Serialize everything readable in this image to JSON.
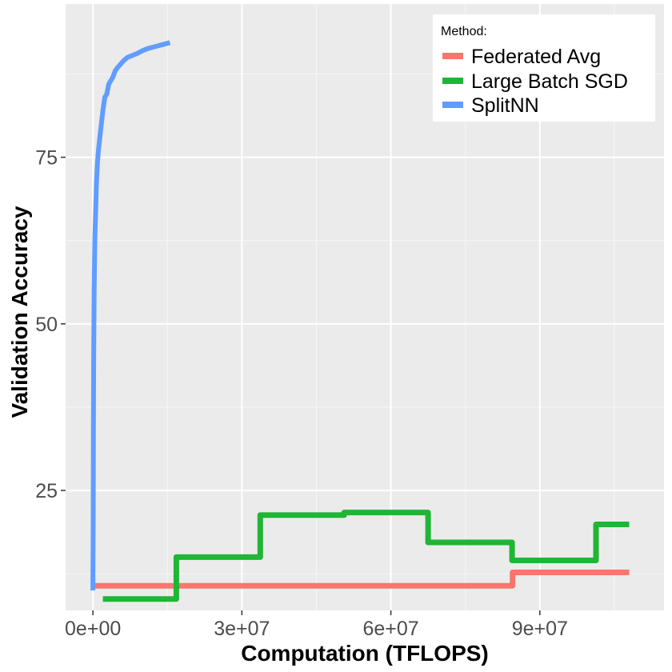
{
  "chart_data": {
    "type": "line",
    "xlabel": "Computation (TFLOPS)",
    "ylabel": "Validation Accuracy",
    "xlim": [
      -5500000,
      115000000
    ],
    "ylim": [
      7,
      98
    ],
    "x_ticks": [
      0,
      30000000,
      60000000,
      90000000
    ],
    "x_tick_labels": [
      "0e+00",
      "3e+07",
      "6e+07",
      "9e+07"
    ],
    "y_ticks": [
      25,
      50,
      75
    ],
    "y_tick_labels": [
      "25",
      "50",
      "75"
    ],
    "grid": true,
    "legend": {
      "title": "Method:",
      "position": "top-right",
      "entries": [
        "Federated Avg",
        "Large Batch SGD",
        "SplitNN"
      ]
    },
    "series": [
      {
        "name": "Federated Avg",
        "color": "#f8766d",
        "step": true,
        "x": [
          0,
          84500000,
          84500000,
          108000000
        ],
        "y": [
          10.7,
          10.7,
          12.7,
          12.7
        ]
      },
      {
        "name": "Large Batch SGD",
        "color": "#1fb535",
        "step": true,
        "x": [
          2000000,
          16800000,
          16800000,
          33700000,
          33700000,
          50600000,
          50600000,
          67500000,
          67500000,
          84400000,
          84400000,
          101300000,
          101300000,
          108000000
        ],
        "y": [
          8.7,
          8.7,
          15.0,
          15.0,
          21.3,
          21.3,
          21.7,
          21.7,
          17.2,
          17.2,
          14.5,
          14.5,
          19.9,
          19.9
        ],
        "points": [
          [
            2000000,
            8.7
          ],
          [
            16800000,
            8.7
          ],
          [
            16800000,
            15.0
          ],
          [
            33700000,
            15.0
          ],
          [
            33700000,
            21.3
          ],
          [
            50600000,
            21.3
          ],
          [
            50600000,
            21.7
          ],
          [
            67500000,
            21.7
          ],
          [
            67500000,
            17.2
          ],
          [
            84400000,
            17.2
          ],
          [
            84400000,
            14.5
          ],
          [
            101300000,
            14.5
          ],
          [
            101300000,
            19.9
          ],
          [
            108000000,
            19.9
          ]
        ]
      },
      {
        "name": "SplitNN",
        "color": "#619cff",
        "x": [
          0,
          50000,
          100000,
          150000,
          250000,
          400000,
          550000,
          700000,
          900000,
          1100000,
          1400000,
          1700000,
          2000000,
          2400000,
          2800000,
          3200000,
          3600000,
          4000000,
          4500000,
          5000000,
          5600000,
          6200000,
          7000000,
          8000000,
          9000000,
          10000000,
          11000000,
          12000000,
          13000000,
          14000000,
          15000000,
          15500000
        ],
        "y": [
          10,
          20,
          35,
          45,
          55,
          63,
          67,
          71,
          74,
          76,
          78,
          80,
          82,
          84,
          84.5,
          86,
          86.5,
          87,
          88,
          88.5,
          89,
          89.5,
          90,
          90.3,
          90.6,
          91,
          91.3,
          91.5,
          91.7,
          91.9,
          92.1,
          92.2
        ]
      }
    ]
  }
}
